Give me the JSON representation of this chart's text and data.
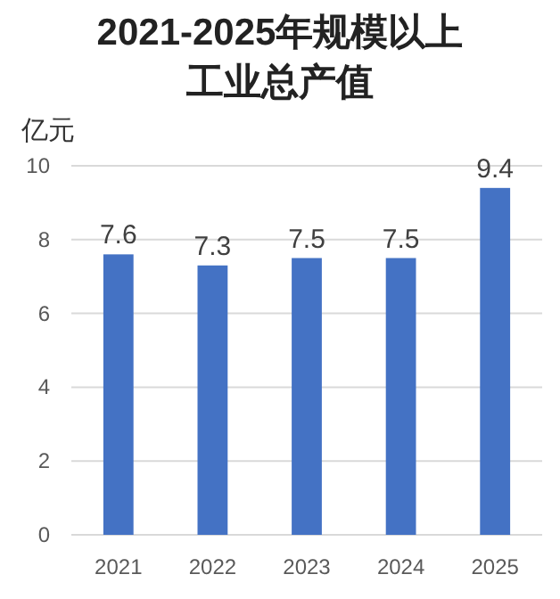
{
  "chart_data": {
    "type": "bar",
    "title": "2021-2025年规模以上工业总产值",
    "ylabel": "亿元",
    "categories": [
      "2021",
      "2022",
      "2023",
      "2024",
      "2025"
    ],
    "values": [
      7.6,
      7.3,
      7.5,
      7.5,
      9.4
    ],
    "color": "#4472c4",
    "ylim": [
      0,
      10
    ],
    "yticks": [
      0,
      2,
      4,
      6,
      8,
      10
    ],
    "grid": "y",
    "data_labels": true
  }
}
